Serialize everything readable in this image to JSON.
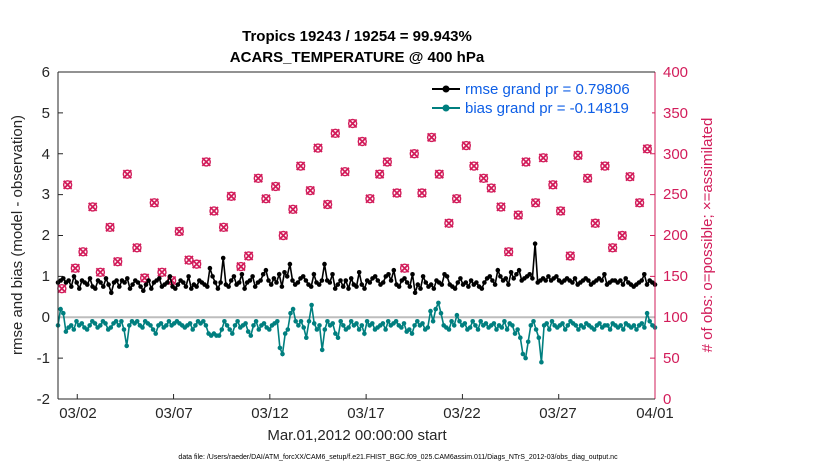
{
  "chart_data": {
    "type": "line",
    "title": "Tropics 19243 / 19254 = 99.943%",
    "subtitle": "ACARS_TEMPERATURE @ 400 hPa",
    "xlabel": "Mar.01,2012 00:00:00 start",
    "ylabel_left": "rmse and bias (model - observation)",
    "ylabel_right": "# of obs: o=possible; ×=assimilated",
    "ylim_left": [
      -2,
      6
    ],
    "ylim_right": [
      0,
      400
    ],
    "xlim_days": [
      0,
      31
    ],
    "x_tick_labels": [
      "03/02",
      "03/07",
      "03/12",
      "03/17",
      "03/22",
      "03/27",
      "04/01"
    ],
    "y_left_tick_labels": [
      "-2",
      "-1",
      "0",
      "1",
      "2",
      "3",
      "4",
      "5",
      "6"
    ],
    "y_right_tick_labels": [
      "0",
      "50",
      "100",
      "150",
      "200",
      "250",
      "300",
      "350",
      "400"
    ],
    "footnote": "data file: /Users/raeder/DAI/ATM_forcXX/CAM6_setup/f.e21.FHIST_BGC.f09_025.CAM6assim.011/Diags_NTrS_2012-03/obs_diag_output.nc",
    "colors": {
      "rmse": "#000000",
      "bias": "#007f7f",
      "obs": "#d21c5a",
      "zero_line": "#bdbdbd",
      "legend_text": "#0d5ee6"
    },
    "series": [
      {
        "name": "rmse grand pr = 0.79806",
        "color": "#000000",
        "values": [
          0.85,
          0.9,
          0.95,
          0.85,
          0.9,
          0.75,
          1.0,
          0.85,
          0.7,
          0.9,
          0.85,
          0.8,
          0.95,
          0.75,
          0.7,
          0.9,
          0.85,
          0.75,
          0.95,
          0.8,
          0.6,
          0.85,
          0.9,
          0.75,
          0.9,
          0.85,
          0.95,
          0.7,
          0.8,
          0.9,
          0.85,
          0.75,
          0.65,
          0.8,
          0.9,
          0.7,
          0.85,
          0.9,
          0.95,
          0.75,
          0.8,
          0.85,
          1.0,
          0.75,
          0.7,
          0.8,
          0.9,
          0.85,
          0.75,
          1.0,
          0.7,
          0.8,
          0.75,
          0.9,
          0.85,
          0.8,
          0.75,
          1.2,
          1.0,
          0.85,
          0.7,
          0.85,
          1.45,
          0.8,
          0.75,
          0.9,
          1.0,
          0.8,
          0.85,
          1.05,
          0.7,
          0.85,
          0.9,
          1.0,
          0.75,
          0.85,
          0.9,
          1.05,
          1.15,
          0.9,
          0.8,
          0.95,
          0.85,
          1.05,
          0.75,
          1.1,
          1.0,
          1.3,
          0.9,
          0.8,
          0.85,
          0.95,
          1.0,
          0.9,
          0.8,
          0.75,
          1.05,
          0.85,
          0.8,
          0.9,
          1.3,
          0.9,
          0.85,
          1.05,
          0.7,
          0.8,
          0.9,
          0.75,
          0.9,
          0.7,
          0.95,
          0.8,
          0.75,
          1.1,
          0.8,
          0.7,
          0.9,
          0.85,
          0.95,
          1.0,
          0.9,
          0.8,
          0.85,
          1.0,
          1.05,
          0.9,
          1.15,
          0.8,
          0.75,
          0.9,
          0.95,
          0.85,
          0.75,
          1.05,
          0.6,
          0.8,
          0.7,
          1.0,
          0.85,
          0.75,
          0.8,
          0.7,
          0.9,
          0.85,
          0.8,
          1.05,
          1.0,
          0.8,
          0.75,
          0.7,
          0.85,
          0.95,
          0.8,
          0.85,
          0.75,
          0.9,
          0.8,
          0.85,
          0.75,
          0.7,
          0.85,
          0.95,
          1.0,
          0.9,
          0.8,
          1.15,
          1.0,
          0.9,
          0.95,
          0.8,
          1.1,
          0.95,
          1.05,
          1.15,
          0.9,
          0.95,
          1.0,
          1.05,
          0.95,
          1.8,
          0.85,
          0.9,
          0.95,
          0.9,
          1.0,
          0.9,
          0.95,
          1.0,
          0.9,
          0.85,
          0.9,
          0.95,
          0.9,
          0.85,
          0.95,
          0.8,
          0.85,
          0.9,
          0.95,
          0.9,
          0.8,
          0.85,
          0.9,
          0.95,
          0.9,
          1.05,
          0.8,
          0.85,
          0.9,
          0.9,
          0.85,
          0.9,
          0.8,
          0.95,
          0.85,
          0.8,
          0.75,
          0.8,
          0.85,
          0.9,
          1.05,
          0.8,
          0.9,
          0.85,
          0.8
        ]
      },
      {
        "name": "bias grand pr = -0.14819",
        "color": "#007f7f",
        "values": [
          -0.2,
          0.2,
          0.1,
          -0.35,
          -0.25,
          -0.2,
          -0.3,
          -0.1,
          -0.2,
          -0.15,
          -0.25,
          -0.3,
          -0.2,
          -0.1,
          -0.15,
          -0.25,
          -0.2,
          -0.1,
          -0.15,
          -0.3,
          -0.25,
          -0.15,
          -0.1,
          -0.2,
          -0.1,
          -0.3,
          -0.7,
          -0.2,
          -0.1,
          -0.15,
          -0.1,
          -0.2,
          -0.25,
          -0.1,
          -0.15,
          -0.2,
          -0.3,
          -0.4,
          -0.2,
          -0.15,
          -0.25,
          -0.2,
          -0.1,
          -0.2,
          -0.15,
          -0.1,
          -0.15,
          -0.2,
          -0.25,
          -0.2,
          -0.15,
          -0.3,
          -0.2,
          -0.1,
          -0.15,
          -0.1,
          -0.2,
          -0.4,
          -0.45,
          -0.4,
          -0.45,
          -0.45,
          -0.3,
          -0.1,
          -0.2,
          -0.3,
          -0.4,
          -0.2,
          -0.1,
          -0.25,
          -0.2,
          -0.15,
          -0.35,
          -0.45,
          -0.2,
          -0.1,
          -0.3,
          -0.2,
          -0.15,
          -0.25,
          -0.3,
          -0.2,
          -0.15,
          -0.1,
          -0.75,
          -0.9,
          -0.4,
          -0.3,
          0.1,
          0.2,
          -0.1,
          -0.2,
          -0.1,
          -0.25,
          -0.5,
          -0.1,
          0.3,
          -0.15,
          -0.3,
          -0.2,
          -0.8,
          -0.3,
          -0.1,
          -0.2,
          -0.15,
          -0.4,
          -0.5,
          -0.1,
          -0.2,
          -0.3,
          -0.25,
          -0.1,
          -0.2,
          -0.15,
          -0.3,
          -0.2,
          -0.4,
          -0.1,
          -0.2,
          -0.15,
          -0.3,
          -0.25,
          -0.2,
          -0.15,
          -0.3,
          -0.1,
          -0.2,
          -0.15,
          -0.1,
          -0.2,
          -0.25,
          -0.15,
          -0.35,
          -0.3,
          -0.4,
          -0.2,
          -0.1,
          -0.2,
          -0.15,
          -0.3,
          -0.25,
          0.15,
          -0.1,
          0.2,
          0.35,
          0.1,
          -0.2,
          -0.25,
          -0.3,
          -0.1,
          -0.2,
          0.05,
          -0.1,
          -0.2,
          -0.15,
          -0.3,
          -0.25,
          -0.1,
          -0.2,
          -0.3,
          -0.1,
          -0.2,
          -0.15,
          -0.25,
          -0.2,
          -0.15,
          -0.3,
          -0.2,
          -0.25,
          -0.1,
          -0.3,
          -0.15,
          -0.2,
          -0.4,
          -0.3,
          -0.5,
          -0.9,
          -1.0,
          -0.6,
          -0.2,
          -0.1,
          -0.3,
          -0.5,
          -1.1,
          -0.2,
          -0.15,
          -0.3,
          -0.1,
          -0.2,
          -0.25,
          -0.2,
          -0.15,
          -0.3,
          -0.2,
          -0.1,
          -0.15,
          -0.2,
          -0.3,
          -0.2,
          -0.25,
          -0.15,
          -0.2,
          -0.25,
          -0.3,
          -0.2,
          -0.15,
          -0.25,
          -0.2,
          -0.2,
          -0.3,
          -0.15,
          -0.2,
          -0.25,
          -0.2,
          -0.3,
          -0.15,
          -0.2,
          -0.25,
          -0.2,
          -0.3,
          -0.2,
          -0.15,
          -0.25,
          0.1,
          -0.1,
          -0.2,
          -0.25
        ]
      },
      {
        "name": "# of obs possible / assimilated",
        "color": "#d21c5a",
        "x_days": [
          0.2,
          0.5,
          0.9,
          1.3,
          1.8,
          2.2,
          2.7,
          3.1,
          3.6,
          4.1,
          4.5,
          5.0,
          5.4,
          5.9,
          6.3,
          6.8,
          7.2,
          7.7,
          8.1,
          8.6,
          9.0,
          9.5,
          9.9,
          10.4,
          10.8,
          11.3,
          11.7,
          12.2,
          12.6,
          13.1,
          13.5,
          14.0,
          14.4,
          14.9,
          15.3,
          15.8,
          16.2,
          16.7,
          17.1,
          17.6,
          18.0,
          18.5,
          18.9,
          19.4,
          19.8,
          20.3,
          20.7,
          21.2,
          21.6,
          22.1,
          22.5,
          23.0,
          23.4,
          23.9,
          24.3,
          24.8,
          25.2,
          25.7,
          26.1,
          26.6,
          27.0,
          27.5,
          27.9,
          28.4,
          28.8,
          29.3,
          29.7,
          30.2,
          30.6
        ],
        "values": [
          135,
          262,
          160,
          180,
          235,
          155,
          210,
          168,
          275,
          185,
          148,
          240,
          155,
          145,
          205,
          170,
          165,
          290,
          230,
          210,
          248,
          162,
          175,
          270,
          245,
          260,
          200,
          232,
          285,
          255,
          307,
          238,
          325,
          278,
          337,
          315,
          245,
          275,
          290,
          252,
          160,
          300,
          252,
          320,
          275,
          215,
          245,
          310,
          285,
          270,
          258,
          235,
          180,
          225,
          290,
          240,
          295,
          262,
          230,
          175,
          298,
          270,
          215,
          285,
          185,
          200,
          272,
          240,
          306
        ]
      }
    ]
  }
}
